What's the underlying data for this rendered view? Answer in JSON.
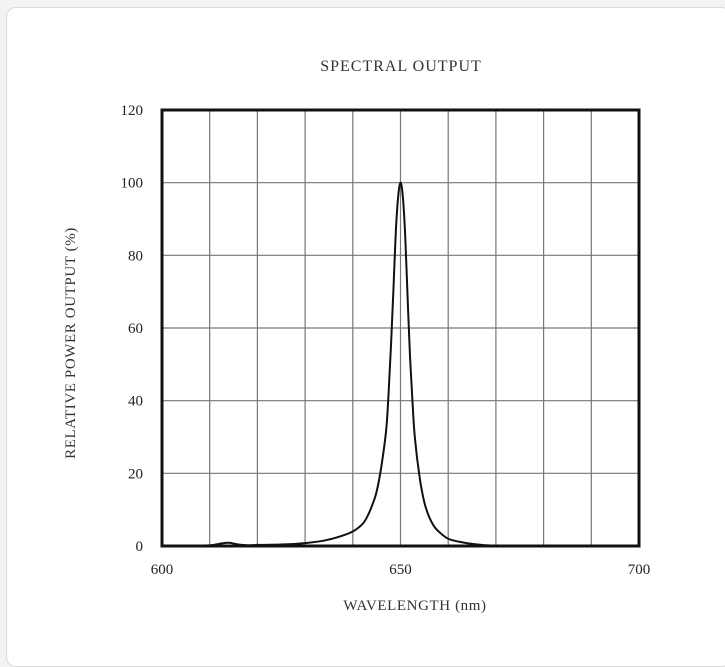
{
  "chart_data": {
    "type": "line",
    "title": "SPECTRAL OUTPUT",
    "xlabel": "WAVELENGTH (nm)",
    "ylabel": "RELATIVE POWER OUTPUT (%)",
    "xlim": [
      600,
      700
    ],
    "ylim": [
      0,
      120
    ],
    "x_ticks": [
      600,
      650,
      700
    ],
    "y_ticks": [
      0,
      20,
      40,
      60,
      80,
      100,
      120
    ],
    "x_gridlines": [
      610,
      620,
      630,
      640,
      650,
      660,
      670,
      680,
      690
    ],
    "y_gridlines": [
      20,
      40,
      60,
      80,
      100
    ],
    "grid": true,
    "legend": "none",
    "line_color": "#111111",
    "series": [
      {
        "x": [
          605,
          610,
          612,
          614,
          616,
          618,
          620,
          625,
          630,
          634,
          637,
          640,
          642,
          643,
          644,
          645,
          646,
          647,
          647.5,
          648,
          648.5,
          649,
          649.5,
          650,
          650.5,
          651,
          651.5,
          652,
          652.5,
          653,
          654,
          655,
          656,
          657,
          658,
          660,
          663,
          667,
          670,
          680,
          690,
          695
        ],
        "y": [
          0,
          0.2,
          0.6,
          0.9,
          0.4,
          0.2,
          0.3,
          0.4,
          0.8,
          1.5,
          2.5,
          4,
          6,
          8,
          11,
          15,
          22,
          32,
          42,
          55,
          70,
          86,
          96,
          100,
          96,
          85,
          68,
          52,
          40,
          30,
          19,
          12,
          8,
          5.5,
          4,
          2,
          1,
          0.3,
          0.1,
          0,
          0,
          0
        ]
      }
    ]
  }
}
